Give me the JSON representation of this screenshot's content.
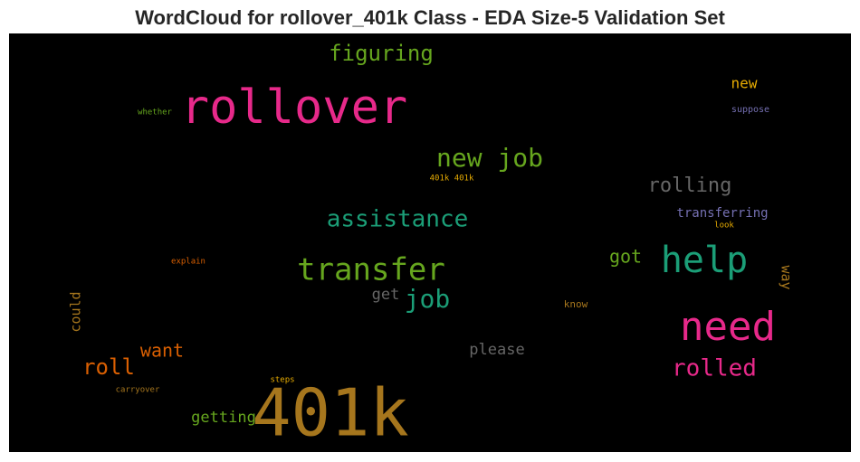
{
  "chart_data": {
    "type": "wordcloud",
    "title": "WordCloud for rollover_401k Class - EDA Size-5 Validation Set",
    "background": "#000000",
    "words": [
      {
        "text": "rollover",
        "color": "#e7298a"
      },
      {
        "text": "401k",
        "color": "#a6761d"
      },
      {
        "text": "need",
        "color": "#e7298a"
      },
      {
        "text": "help",
        "color": "#1b9e77"
      },
      {
        "text": "transfer",
        "color": "#66a61e"
      },
      {
        "text": "new job",
        "color": "#66a61e"
      },
      {
        "text": "assistance",
        "color": "#1b9e77"
      },
      {
        "text": "figuring",
        "color": "#66a61e"
      },
      {
        "text": "rolled",
        "color": "#e7298a"
      },
      {
        "text": "job",
        "color": "#1b9e77"
      },
      {
        "text": "rolling",
        "color": "#666666"
      },
      {
        "text": "got",
        "color": "#66a61e"
      },
      {
        "text": "roll",
        "color": "#d95f02"
      },
      {
        "text": "want",
        "color": "#d95f02"
      },
      {
        "text": "please",
        "color": "#666666"
      },
      {
        "text": "getting",
        "color": "#66a61e"
      },
      {
        "text": "get",
        "color": "#666666"
      },
      {
        "text": "new",
        "color": "#e6ab02"
      },
      {
        "text": "transferring",
        "color": "#7570b3"
      },
      {
        "text": "suppose",
        "color": "#7570b3"
      },
      {
        "text": "whether",
        "color": "#66a61e"
      },
      {
        "text": "401k 401k",
        "color": "#e6ab02"
      },
      {
        "text": "look",
        "color": "#e6ab02"
      },
      {
        "text": "explain",
        "color": "#d95f02"
      },
      {
        "text": "know",
        "color": "#a6761d"
      },
      {
        "text": "could",
        "color": "#a6761d"
      },
      {
        "text": "way",
        "color": "#a6761d"
      },
      {
        "text": "steps",
        "color": "#e6ab02"
      },
      {
        "text": "carryover",
        "color": "#a6761d"
      }
    ]
  }
}
